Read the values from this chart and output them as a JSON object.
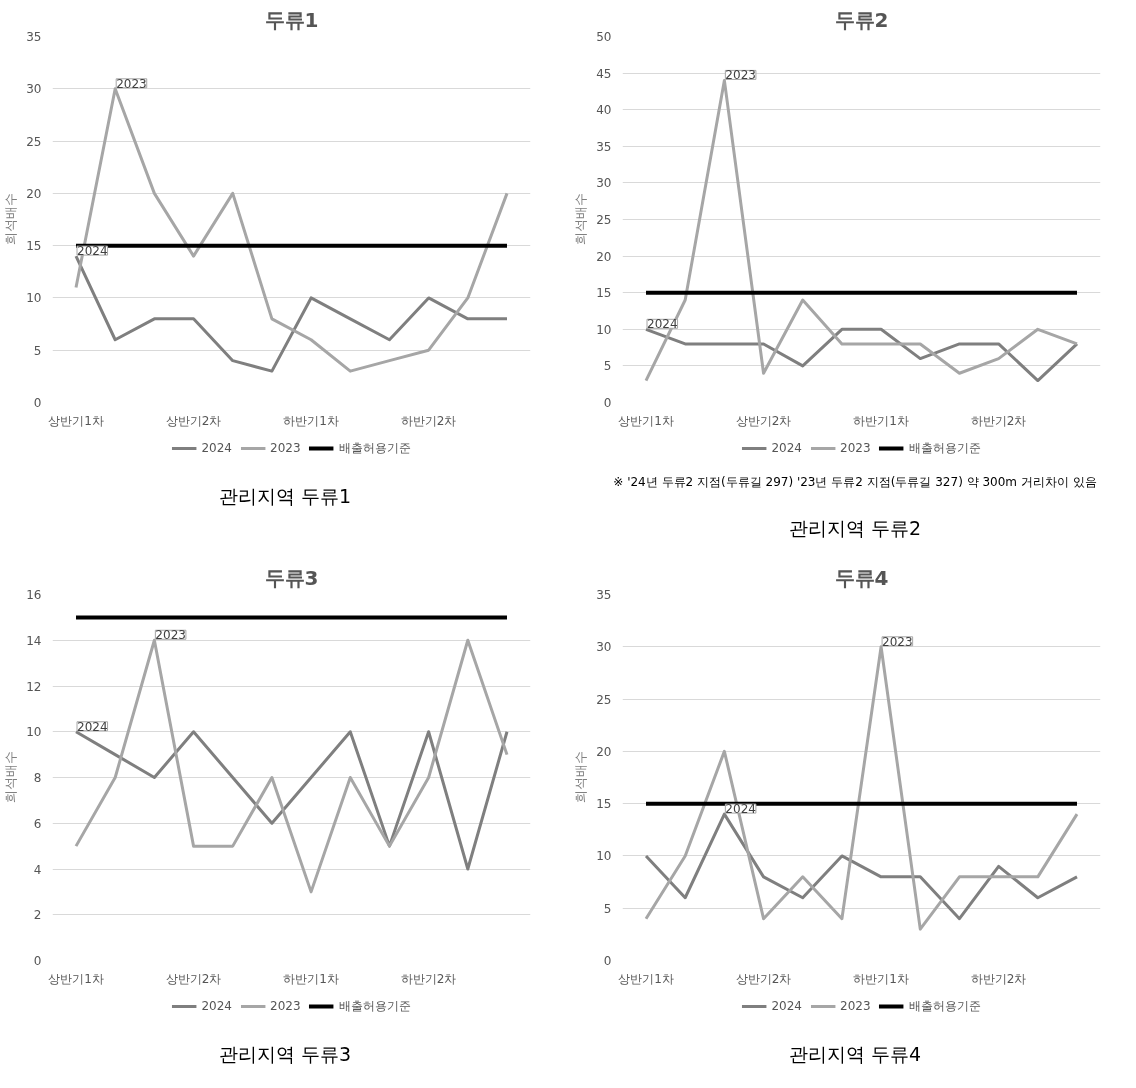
{
  "chart_data": [
    {
      "type": "line",
      "title": "두류1",
      "ylabel": "희석배수",
      "categories": [
        "상반기1차",
        null,
        null,
        "상반기2차",
        null,
        null,
        "하반기1차",
        null,
        null,
        "하반기2차",
        null,
        null
      ],
      "ylim": [
        0,
        35
      ],
      "yticks": [
        0,
        5,
        10,
        15,
        20,
        25,
        30,
        35
      ],
      "grid": "y",
      "legend": "bottom",
      "series": [
        {
          "name": "2024",
          "color": "#7f7f7f",
          "values": [
            14,
            6,
            8,
            8,
            4,
            3,
            10,
            8,
            6,
            10,
            8,
            8
          ]
        },
        {
          "name": "2023",
          "color": "#a6a6a6",
          "values": [
            11,
            30,
            20,
            14,
            20,
            8,
            6,
            3,
            4,
            5,
            10,
            20
          ]
        },
        {
          "name": "배출허용기준",
          "color": "#000000",
          "values": [
            15,
            15,
            15,
            15,
            15,
            15,
            15,
            15,
            15,
            15,
            15,
            15
          ]
        }
      ],
      "annotations": [
        "2024",
        "2023",
        "관리지역 두류1"
      ]
    },
    {
      "type": "line",
      "title": "두류2",
      "ylabel": "희석배수",
      "categories": [
        "상반기1차",
        null,
        null,
        "상반기2차",
        null,
        null,
        "하반기1차",
        null,
        null,
        "하반기2차",
        null,
        null
      ],
      "ylim": [
        0,
        50
      ],
      "yticks": [
        0,
        5,
        10,
        15,
        20,
        25,
        30,
        35,
        40,
        45,
        50
      ],
      "grid": "y",
      "legend": "bottom",
      "series": [
        {
          "name": "2024",
          "color": "#7f7f7f",
          "values": [
            10,
            8,
            8,
            8,
            5,
            10,
            10,
            6,
            8,
            8,
            3,
            8
          ]
        },
        {
          "name": "2023",
          "color": "#a6a6a6",
          "values": [
            3,
            14,
            44,
            4,
            14,
            8,
            8,
            8,
            4,
            6,
            10,
            8
          ]
        },
        {
          "name": "배출허용기준",
          "color": "#000000",
          "values": [
            15,
            15,
            15,
            15,
            15,
            15,
            15,
            15,
            15,
            15,
            15,
            15
          ]
        }
      ],
      "annotations": [
        "2024",
        "2023",
        "※ '24년 두류2 지점(두류길 297) '23년 두류2 지점(두류길 327) 약 300m 거리차이 있음",
        "관리지역 두류2"
      ]
    },
    {
      "type": "line",
      "title": "두류3",
      "ylabel": "희석배수",
      "categories": [
        "상반기1차",
        null,
        null,
        "상반기2차",
        null,
        null,
        "하반기1차",
        null,
        null,
        "하반기2차",
        null,
        null
      ],
      "ylim": [
        0,
        16
      ],
      "yticks": [
        0,
        2,
        4,
        6,
        8,
        10,
        12,
        14,
        16
      ],
      "grid": "y",
      "legend": "bottom",
      "series": [
        {
          "name": "2024",
          "color": "#7f7f7f",
          "values": [
            10,
            9,
            8,
            10,
            8,
            6,
            8,
            10,
            5,
            10,
            4,
            10
          ]
        },
        {
          "name": "2023",
          "color": "#a6a6a6",
          "values": [
            5,
            8,
            14,
            5,
            5,
            8,
            3,
            8,
            5,
            8,
            14,
            9
          ]
        },
        {
          "name": "배출허용기준",
          "color": "#000000",
          "values": [
            15,
            15,
            15,
            15,
            15,
            15,
            15,
            15,
            15,
            15,
            15,
            15
          ]
        }
      ],
      "annotations": [
        "2024",
        "2023",
        "관리지역 두류3"
      ]
    },
    {
      "type": "line",
      "title": "두류4",
      "ylabel": "희석배수",
      "categories": [
        "상반기1차",
        null,
        null,
        "상반기2차",
        null,
        null,
        "하반기1차",
        null,
        null,
        "하반기2차",
        null,
        null
      ],
      "ylim": [
        0,
        35
      ],
      "yticks": [
        0,
        5,
        10,
        15,
        20,
        25,
        30,
        35
      ],
      "grid": "y",
      "legend": "bottom",
      "series": [
        {
          "name": "2024",
          "color": "#7f7f7f",
          "values": [
            10,
            6,
            14,
            8,
            6,
            10,
            8,
            8,
            4,
            9,
            6,
            8
          ]
        },
        {
          "name": "2023",
          "color": "#a6a6a6",
          "values": [
            4,
            10,
            20,
            4,
            8,
            4,
            30,
            3,
            8,
            8,
            8,
            14
          ]
        },
        {
          "name": "배출허용기준",
          "color": "#000000",
          "values": [
            15,
            15,
            15,
            15,
            15,
            15,
            15,
            15,
            15,
            15,
            15,
            15
          ]
        }
      ],
      "annotations": [
        "2024",
        "2023",
        "관리지역 두류4"
      ]
    }
  ]
}
